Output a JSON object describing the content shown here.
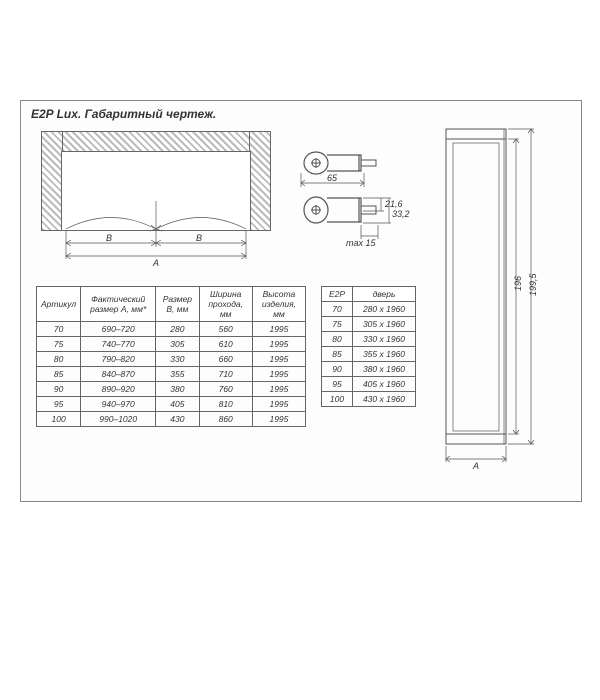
{
  "title": "E2P Lux. Габаритный чертеж.",
  "drawing": {
    "dim_A": "A",
    "dim_B_left": "B",
    "dim_B_right": "B"
  },
  "profile": {
    "width": "65",
    "h1": "21,6",
    "h2": "33,2",
    "note": "max 15"
  },
  "sideview": {
    "h_inner": "196",
    "h_outer": "199,5",
    "dim_A": "A"
  },
  "table1": {
    "headers": [
      "Артикул",
      "Фактический размер A, мм*",
      "Размер B, мм",
      "Ширина прохода, мм",
      "Высота изделия, мм"
    ],
    "rows": [
      [
        "70",
        "690–720",
        "280",
        "560",
        "1995"
      ],
      [
        "75",
        "740–770",
        "305",
        "610",
        "1995"
      ],
      [
        "80",
        "790–820",
        "330",
        "660",
        "1995"
      ],
      [
        "85",
        "840–870",
        "355",
        "710",
        "1995"
      ],
      [
        "90",
        "890–920",
        "380",
        "760",
        "1995"
      ],
      [
        "95",
        "940–970",
        "405",
        "810",
        "1995"
      ],
      [
        "100",
        "990–1020",
        "430",
        "860",
        "1995"
      ]
    ]
  },
  "table2": {
    "header_label": "E2P",
    "header_col": "дверь",
    "rows": [
      [
        "70",
        "280 x 1960"
      ],
      [
        "75",
        "305 x 1960"
      ],
      [
        "80",
        "330 x 1960"
      ],
      [
        "85",
        "355 x 1960"
      ],
      [
        "90",
        "380 x 1960"
      ],
      [
        "95",
        "405 x 1960"
      ],
      [
        "100",
        "430 x 1960"
      ]
    ]
  },
  "colors": {
    "line": "#555555",
    "wall_hatch": "#bbbbbb",
    "border": "#888888",
    "text": "#333333"
  }
}
